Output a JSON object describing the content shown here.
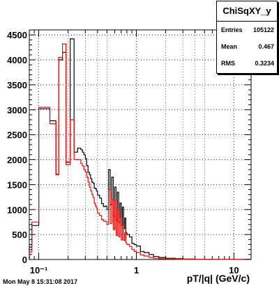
{
  "chart_data": {
    "type": "histogram",
    "title": "ChiSqXY_y",
    "xlabel": "pT/|q| (GeV/c)",
    "ylabel": "",
    "xscale": "log",
    "xlim": [
      0.08,
      15
    ],
    "ylim": [
      0,
      4600
    ],
    "x_tick_labels": [
      "10⁻¹",
      "1",
      "10"
    ],
    "y_tick_labels": [
      "0",
      "500",
      "1000",
      "1500",
      "2000",
      "2500",
      "3000",
      "3500",
      "4000",
      "4500"
    ],
    "y_ticks": [
      0,
      500,
      1000,
      1500,
      2000,
      2500,
      3000,
      3500,
      4000,
      4500
    ],
    "grid": true,
    "stats": {
      "title": "ChiSqXY_y",
      "rows": [
        {
          "label": "Entries",
          "value": "105122"
        },
        {
          "label": "Mean",
          "value": "0.467"
        },
        {
          "label": "RMS",
          "value": "0.3234"
        }
      ]
    },
    "series": [
      {
        "color": "#000000",
        "edges": [
          0.08,
          0.085,
          0.1,
          0.13,
          0.15,
          0.16,
          0.175,
          0.19,
          0.21,
          0.23,
          0.25,
          0.27,
          0.28,
          0.29,
          0.3,
          0.31,
          0.32,
          0.33,
          0.34,
          0.35,
          0.36,
          0.37,
          0.38,
          0.39,
          0.4,
          0.42,
          0.44,
          0.46,
          0.48,
          0.5,
          0.52,
          0.54,
          0.56,
          0.58,
          0.6,
          0.62,
          0.64,
          0.66,
          0.68,
          0.7,
          0.72,
          0.74,
          0.76,
          0.78,
          0.8,
          0.85,
          0.9,
          0.95,
          1.0,
          1.1,
          1.2,
          1.35,
          1.5,
          1.7,
          2.0,
          2.5,
          3.0,
          4.0,
          6.0,
          15.0
        ],
        "values": [
          250,
          680,
          3020,
          2780,
          1700,
          4000,
          4150,
          1950,
          4420,
          2150,
          2230,
          2200,
          2150,
          2100,
          2020,
          1880,
          1750,
          1700,
          1620,
          1550,
          1530,
          1430,
          1420,
          1370,
          1290,
          1230,
          1120,
          1060,
          1070,
          1000,
          1800,
          1100,
          1650,
          870,
          1450,
          780,
          1350,
          740,
          1130,
          680,
          1050,
          620,
          830,
          540,
          500,
          450,
          320,
          300,
          270,
          160,
          140,
          100,
          60,
          40,
          25,
          15,
          8,
          4,
          2
        ]
      },
      {
        "color": "#ff0000",
        "edges": [
          0.08,
          0.085,
          0.1,
          0.13,
          0.15,
          0.16,
          0.175,
          0.19,
          0.21,
          0.23,
          0.25,
          0.27,
          0.28,
          0.29,
          0.3,
          0.31,
          0.32,
          0.33,
          0.34,
          0.35,
          0.36,
          0.37,
          0.38,
          0.39,
          0.4,
          0.42,
          0.44,
          0.46,
          0.48,
          0.5,
          0.52,
          0.54,
          0.56,
          0.58,
          0.6,
          0.62,
          0.64,
          0.66,
          0.68,
          0.7,
          0.72,
          0.74,
          0.76,
          0.78,
          0.8,
          0.85,
          0.9,
          0.95,
          1.0,
          1.1,
          1.2,
          1.35,
          1.5,
          1.7,
          2.0,
          2.5,
          3.0,
          4.0,
          6.0,
          15.0
        ],
        "values": [
          150,
          750,
          3050,
          2720,
          1710,
          4050,
          4320,
          1900,
          2800,
          2000,
          2000,
          1920,
          1870,
          1800,
          1750,
          1650,
          1550,
          1450,
          1370,
          1300,
          1240,
          1130,
          1070,
          1030,
          930,
          880,
          800,
          770,
          760,
          700,
          1400,
          720,
          1200,
          600,
          1180,
          480,
          1000,
          450,
          840,
          390,
          700,
          380,
          530,
          330,
          300,
          260,
          200,
          160,
          140,
          90,
          70,
          40,
          25,
          15,
          10,
          5,
          3,
          2,
          1
        ]
      }
    ]
  },
  "footer": {
    "datetime": "Mon May  8 15:31:08 2017"
  }
}
